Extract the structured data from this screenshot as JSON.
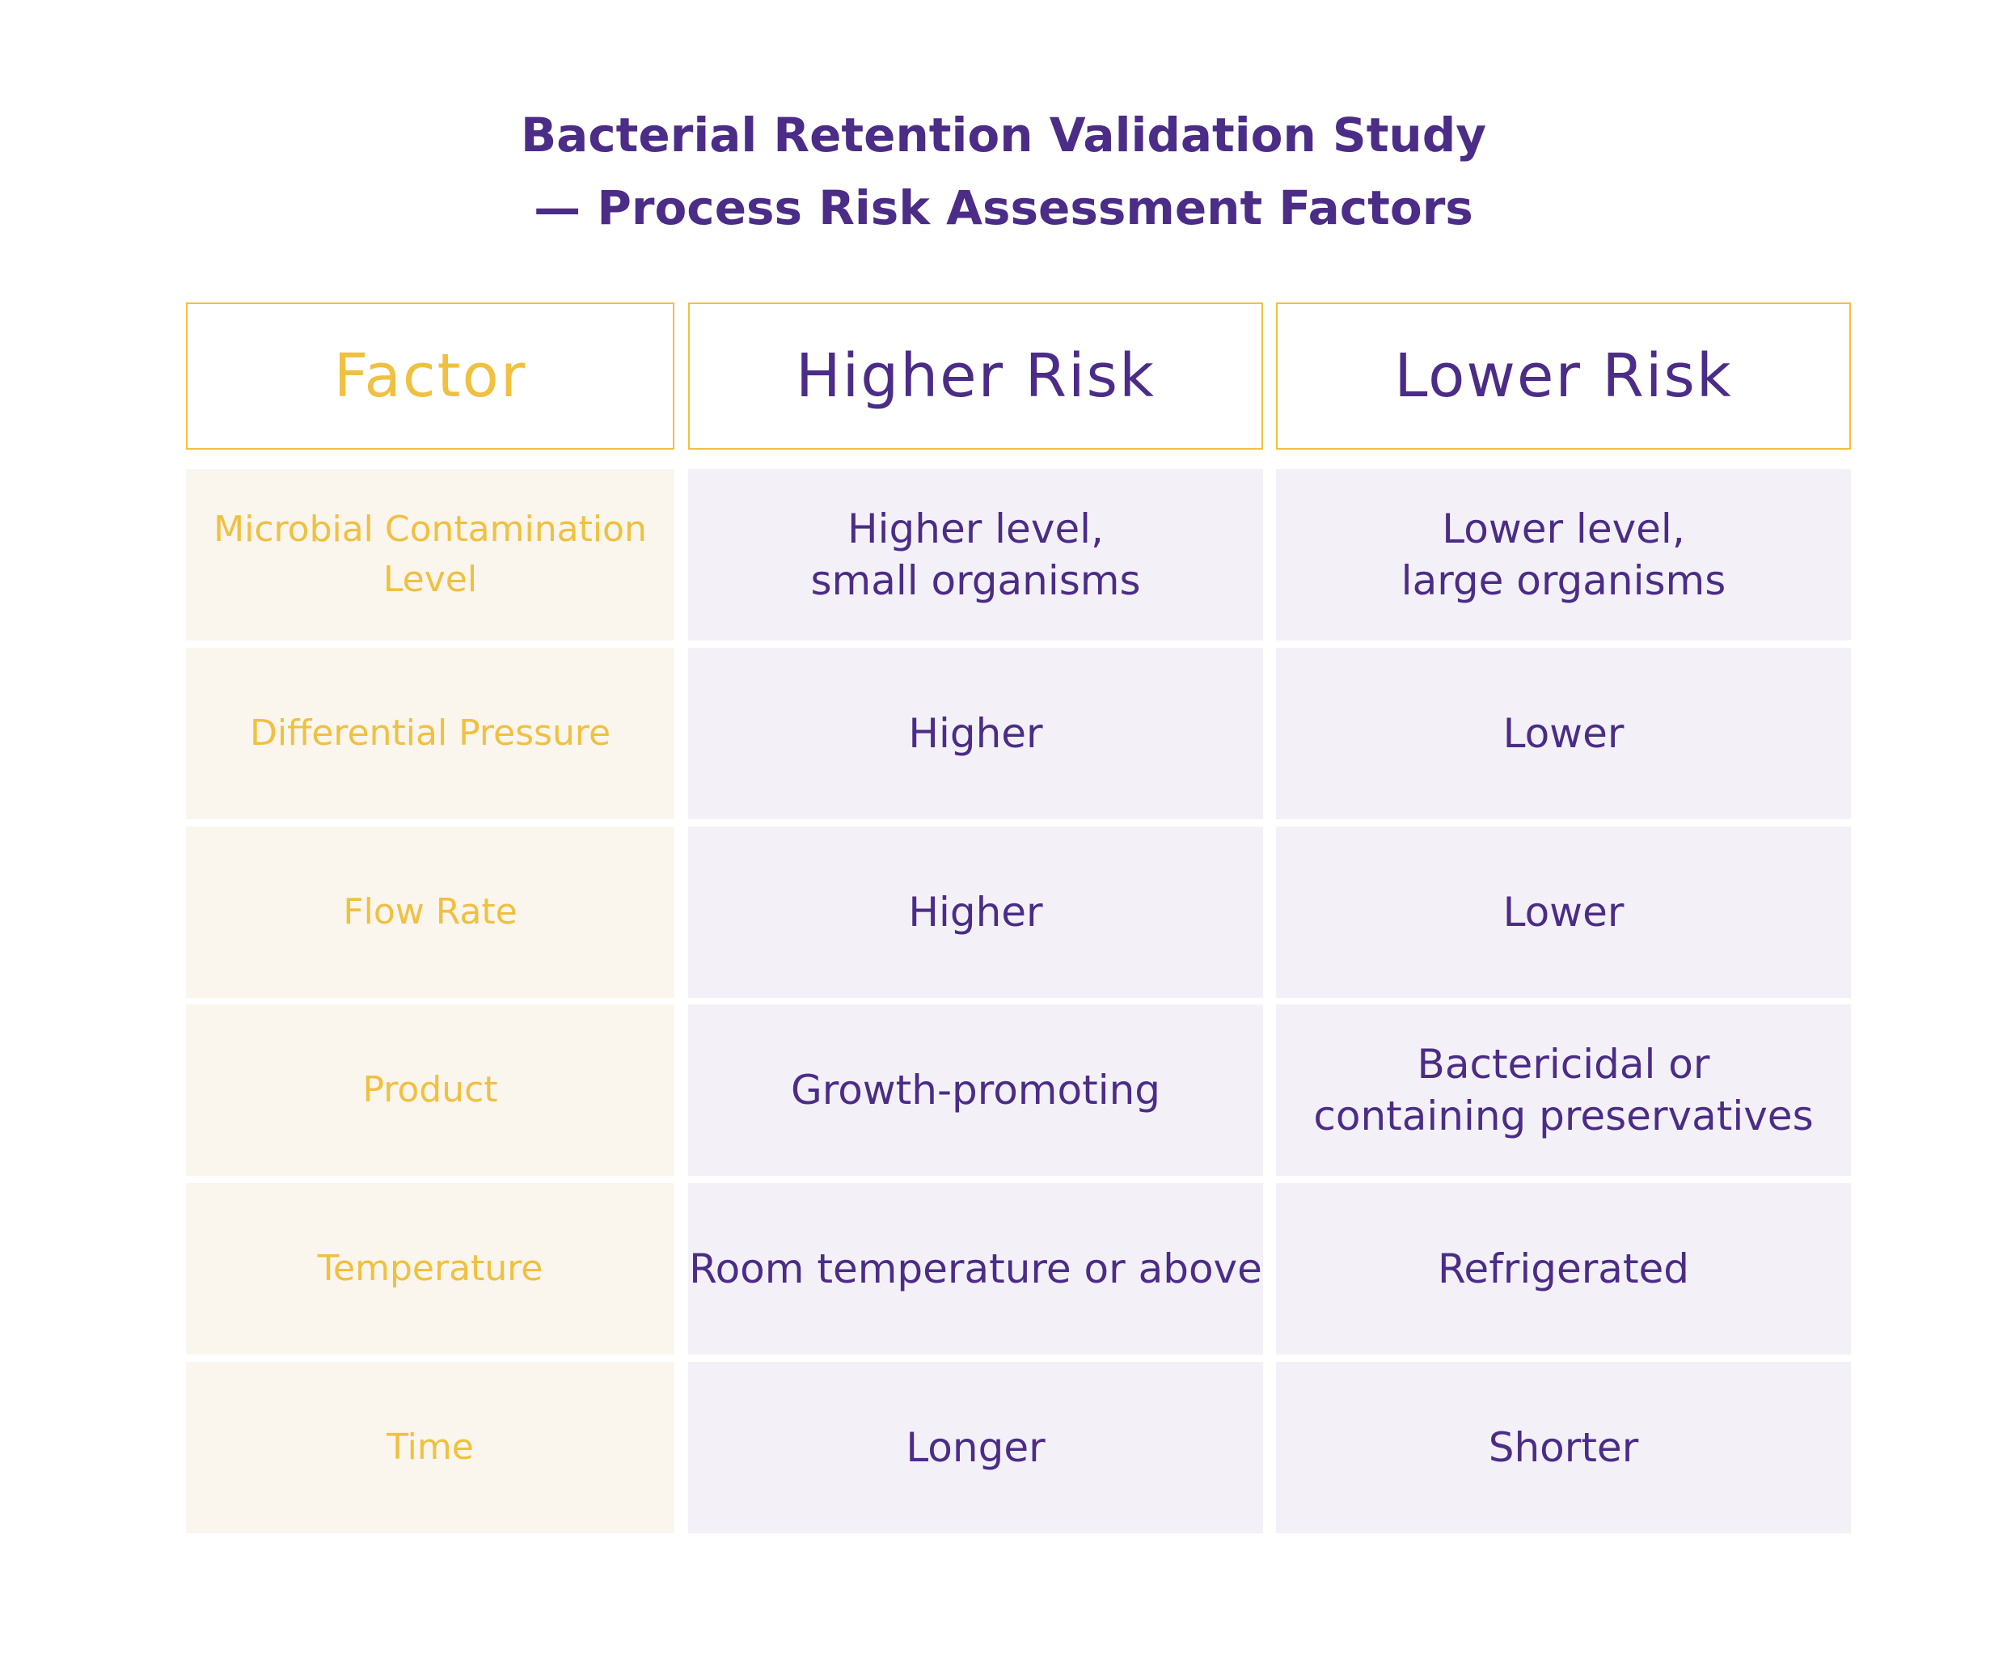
{
  "title": {
    "line1": "Bacterial Retention Validation Study",
    "line2": "— Process Risk Assessment Factors"
  },
  "table": {
    "headers": [
      "Factor",
      "Higher Risk",
      "Lower Risk"
    ],
    "rows": [
      {
        "factor": "Microbial Contamination\nLevel",
        "higher": "Higher level,\nsmall organisms",
        "lower": "Lower level,\nlarge organisms"
      },
      {
        "factor": "Differential Pressure",
        "higher": "Higher",
        "lower": "Lower"
      },
      {
        "factor": "Flow Rate",
        "higher": "Higher",
        "lower": "Lower"
      },
      {
        "factor": "Product",
        "higher": "Growth-promoting",
        "lower": "Bactericidal or\ncontaining preservatives"
      },
      {
        "factor": "Temperature",
        "higher": "Room temperature or above",
        "lower": "Refrigerated"
      },
      {
        "factor": "Time",
        "higher": "Longer",
        "lower": "Shorter"
      }
    ]
  },
  "colors": {
    "primary": "#4b2c87",
    "accent": "#f0c040",
    "factor_bg": "#faf6ee",
    "value_bg": "#f3f1f7"
  }
}
